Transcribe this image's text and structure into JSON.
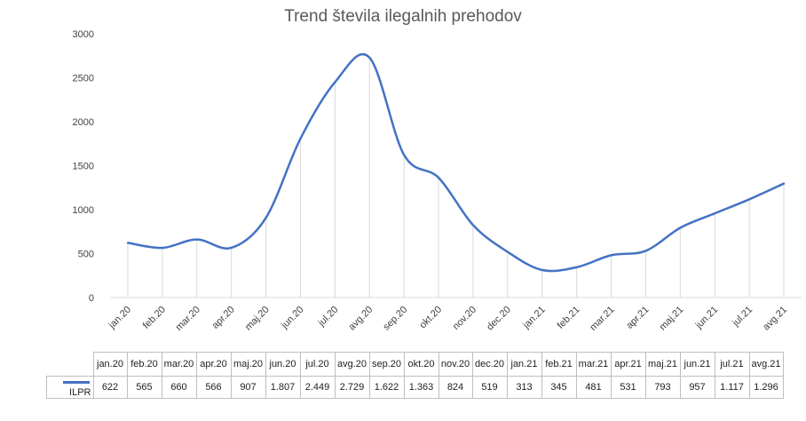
{
  "chart_data": {
    "type": "line",
    "title": "Trend števila ilegalnih prehodov",
    "categories": [
      "jan.20",
      "feb.20",
      "mar.20",
      "apr.20",
      "maj.20",
      "jun.20",
      "jul.20",
      "avg.20",
      "sep.20",
      "okt.20",
      "nov.20",
      "dec.20",
      "jan.21",
      "feb.21",
      "mar.21",
      "apr.21",
      "maj.21",
      "jun.21",
      "jul.21",
      "avg.21"
    ],
    "series": [
      {
        "name": "ILPR",
        "values": [
          622,
          565,
          660,
          566,
          907,
          1807,
          2449,
          2729,
          1622,
          1363,
          824,
          519,
          313,
          345,
          481,
          531,
          793,
          957,
          1117,
          1296
        ],
        "value_labels": [
          "622",
          "565",
          "660",
          "566",
          "907",
          "1.807",
          "2.449",
          "2.729",
          "1.622",
          "1.363",
          "824",
          "519",
          "313",
          "345",
          "481",
          "531",
          "793",
          "957",
          "1.117",
          "1.296"
        ],
        "color": "#4472C4"
      }
    ],
    "ylim": [
      0,
      3000
    ],
    "yticks": [
      0,
      500,
      1000,
      1500,
      2000,
      2500,
      3000
    ],
    "grid": "vertical drop lines",
    "legend": "data table",
    "xlabel": "",
    "ylabel": ""
  }
}
